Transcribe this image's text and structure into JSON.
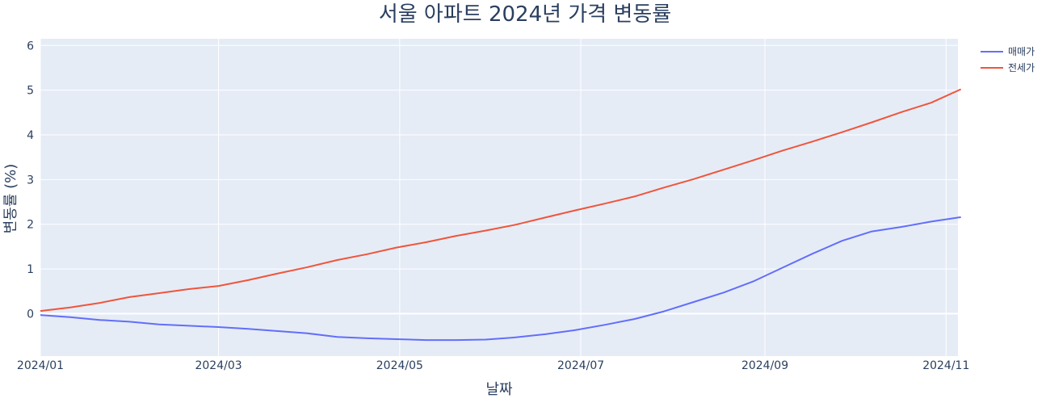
{
  "chart_data": {
    "type": "line",
    "title": "서울 아파트 2024년 가격 변동률",
    "xlabel": "날짜",
    "ylabel": "변동률 (%)",
    "x_axis_kind": "date",
    "x": [
      "2024-01-01",
      "2024-01-11",
      "2024-01-21",
      "2024-01-31",
      "2024-02-10",
      "2024-02-20",
      "2024-03-01",
      "2024-03-11",
      "2024-03-21",
      "2024-03-31",
      "2024-04-10",
      "2024-04-20",
      "2024-04-30",
      "2024-05-10",
      "2024-05-20",
      "2024-05-30",
      "2024-06-09",
      "2024-06-19",
      "2024-06-29",
      "2024-07-09",
      "2024-07-19",
      "2024-07-29",
      "2024-08-08",
      "2024-08-18",
      "2024-08-28",
      "2024-09-07",
      "2024-09-17",
      "2024-09-27",
      "2024-10-07",
      "2024-10-17",
      "2024-10-27",
      "2024-11-06"
    ],
    "series": [
      {
        "name": "매매가",
        "color": "#636efa",
        "values": [
          -0.03,
          -0.08,
          -0.14,
          -0.18,
          -0.24,
          -0.27,
          -0.3,
          -0.34,
          -0.39,
          -0.44,
          -0.52,
          -0.55,
          -0.57,
          -0.59,
          -0.59,
          -0.58,
          -0.53,
          -0.46,
          -0.37,
          -0.25,
          -0.12,
          0.05,
          0.26,
          0.47,
          0.72,
          1.03,
          1.34,
          1.63,
          1.84,
          1.94,
          2.06,
          2.16
        ]
      },
      {
        "name": "전세가",
        "color": "#ef553b",
        "values": [
          0.06,
          0.14,
          0.24,
          0.37,
          0.46,
          0.55,
          0.62,
          0.75,
          0.9,
          1.04,
          1.2,
          1.33,
          1.48,
          1.6,
          1.74,
          1.86,
          1.99,
          2.15,
          2.31,
          2.46,
          2.62,
          2.82,
          3.01,
          3.22,
          3.43,
          3.65,
          3.85,
          4.06,
          4.28,
          4.51,
          4.72,
          5.02
        ]
      }
    ],
    "xlim": [
      "2024-01-01",
      "2024-11-05"
    ],
    "ylim": [
      -0.95,
      6.15
    ],
    "x_ticks": [
      {
        "value": "2024-01-01",
        "label": "2024/01"
      },
      {
        "value": "2024-03-01",
        "label": "2024/03"
      },
      {
        "value": "2024-05-01",
        "label": "2024/05"
      },
      {
        "value": "2024-07-01",
        "label": "2024/07"
      },
      {
        "value": "2024-09-01",
        "label": "2024/09"
      },
      {
        "value": "2024-11-01",
        "label": "2024/11"
      }
    ],
    "y_ticks": [
      0,
      1,
      2,
      3,
      4,
      5,
      6
    ],
    "grid": true,
    "legend_position": "top-right",
    "plot_bg": "#e5ecf6",
    "grid_color": "#ffffff",
    "text_color": "#2a3f5f"
  }
}
